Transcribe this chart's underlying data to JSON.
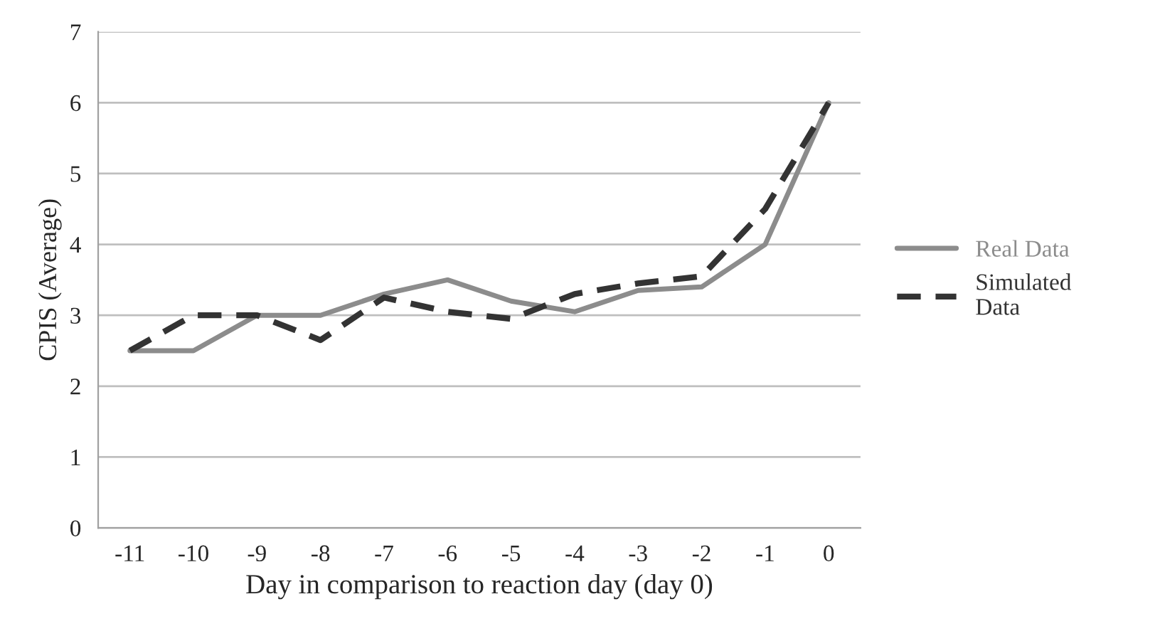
{
  "chart_data": {
    "type": "line",
    "xlabel": "Day in comparison to reaction day (day 0)",
    "ylabel": "CPIS (Average)",
    "categories": [
      "-11",
      "-10",
      "-9",
      "-8",
      "-7",
      "-6",
      "-5",
      "-4",
      "-3",
      "-2",
      "-1",
      "0"
    ],
    "series": [
      {
        "name": "Real Data",
        "color": "#8c8c8c",
        "line_style": "solid",
        "values": [
          2.5,
          2.5,
          3.0,
          3.0,
          3.3,
          3.5,
          3.2,
          3.05,
          3.35,
          3.4,
          4.0,
          6.0
        ]
      },
      {
        "name": "Simulated Data",
        "color": "#333333",
        "line_style": "dashed",
        "values": [
          2.5,
          3.0,
          3.0,
          2.65,
          3.25,
          3.05,
          2.95,
          3.3,
          3.45,
          3.55,
          4.5,
          6.0
        ]
      }
    ],
    "ylim": [
      0,
      7
    ],
    "yticks": [
      0,
      1,
      2,
      3,
      4,
      5,
      6,
      7
    ],
    "grid": "y",
    "legend": "right",
    "marker": "none"
  }
}
